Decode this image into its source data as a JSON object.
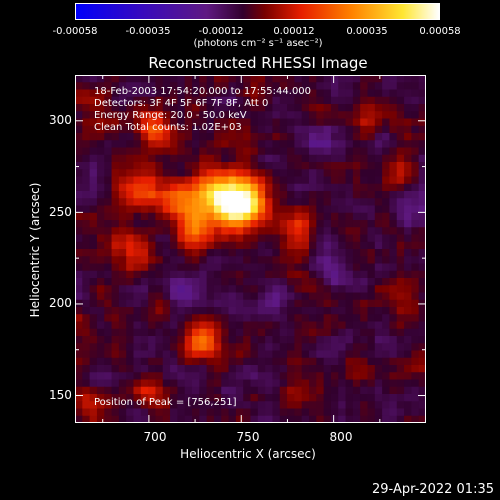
{
  "colorbar": {
    "tick_labels": [
      "-0.00058",
      "-0.00035",
      "-0.00012",
      "0.00012",
      "0.00035",
      "0.00058"
    ],
    "units": "(photons cm⁻² s⁻¹ asec⁻²)"
  },
  "chart_data": {
    "type": "heatmap",
    "title": "Reconstructed RHESSI Image",
    "xlabel": "Heliocentric X (arcsec)",
    "ylabel": "Heliocentric Y (arcsec)",
    "xlim": [
      660,
      850
    ],
    "ylim": [
      135,
      325
    ],
    "xticks": [
      700,
      750,
      800
    ],
    "yticks": [
      150,
      200,
      250,
      300
    ],
    "color_range": [
      -0.00058,
      0.00058
    ],
    "colormap": "blue-purple-red-yellow-white",
    "peak": {
      "x": 756,
      "y": 251
    },
    "bright_sources": [
      {
        "x": 750,
        "y": 255,
        "value": 0.00058
      },
      {
        "x": 734,
        "y": 258,
        "value": 0.0004
      },
      {
        "x": 715,
        "y": 255,
        "value": 0.0003
      },
      {
        "x": 695,
        "y": 262,
        "value": 0.00025
      },
      {
        "x": 702,
        "y": 295,
        "value": 0.0003
      },
      {
        "x": 725,
        "y": 240,
        "value": 0.0002
      },
      {
        "x": 690,
        "y": 230,
        "value": 0.00018
      },
      {
        "x": 728,
        "y": 180,
        "value": 0.0003
      },
      {
        "x": 780,
        "y": 238,
        "value": 0.00016
      },
      {
        "x": 820,
        "y": 300,
        "value": 0.00014
      },
      {
        "x": 835,
        "y": 272,
        "value": 0.00012
      },
      {
        "x": 838,
        "y": 205,
        "value": 0.00012
      },
      {
        "x": 700,
        "y": 150,
        "value": 0.00013
      },
      {
        "x": 780,
        "y": 150,
        "value": 0.0001
      },
      {
        "x": 668,
        "y": 145,
        "value": 0.00012
      },
      {
        "x": 668,
        "y": 300,
        "value": 0.0001
      },
      {
        "x": 815,
        "y": 165,
        "value": 9e-05
      }
    ],
    "dim_regions": [
      {
        "x": 790,
        "y": 290,
        "value": -0.00012
      },
      {
        "x": 720,
        "y": 210,
        "value": -0.00012
      },
      {
        "x": 830,
        "y": 180,
        "value": -0.0001
      },
      {
        "x": 760,
        "y": 195,
        "value": -8e-05
      },
      {
        "x": 800,
        "y": 220,
        "value": -9e-05
      }
    ]
  },
  "info": {
    "line1": "18-Feb-2003 17:54:20.000 to 17:55:44.000",
    "line2": "Detectors: 3F 4F 5F 6F 7F 8F, Att 0",
    "line3": "Energy Range: 20.0 - 50.0 keV",
    "line4": "Clean    Total counts: 1.02E+03",
    "peak_text": "Position of Peak = [756,251]"
  },
  "x_tick_labels": [
    "700",
    "750",
    "800"
  ],
  "y_tick_labels": [
    "150",
    "200",
    "250",
    "300"
  ],
  "timestamp": "29-Apr-2022 01:35"
}
